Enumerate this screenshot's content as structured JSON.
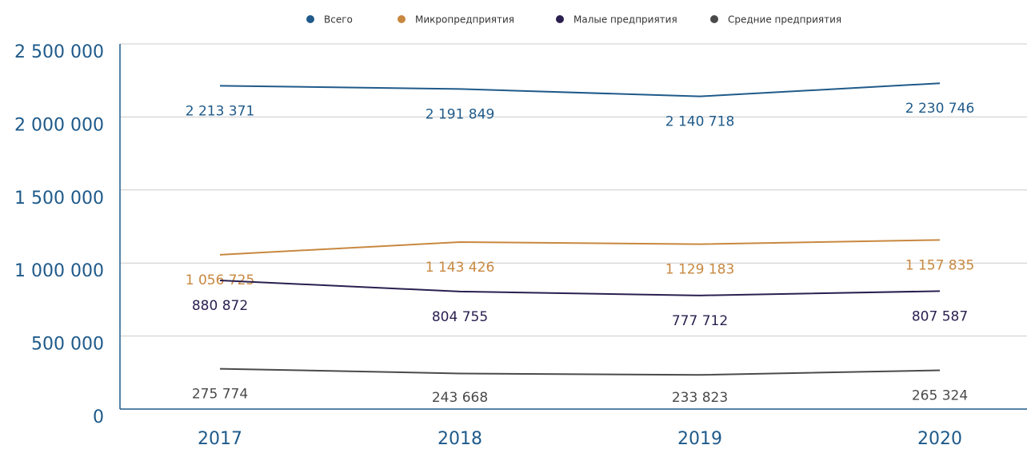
{
  "chart_data": {
    "type": "line",
    "categories": [
      "2017",
      "2018",
      "2019",
      "2020"
    ],
    "series": [
      {
        "name": "Всего",
        "color": "#1f5a8a",
        "values": [
          2213371,
          2191849,
          2140718,
          2230746
        ],
        "value_labels": [
          "2 213 371",
          "2 191 849",
          "2 140 718",
          "2 230 746"
        ]
      },
      {
        "name": "Микропредприятия",
        "color": "#c8883f",
        "values": [
          1056725,
          1143426,
          1129183,
          1157835
        ],
        "value_labels": [
          "1 056 725",
          "1 143 426",
          "1 129 183",
          "1 157 835"
        ]
      },
      {
        "name": "Малые предприятия",
        "color": "#2a1f4f",
        "values": [
          880872,
          804755,
          777712,
          807587
        ],
        "value_labels": [
          "880 872",
          "804 755",
          "777 712",
          "807 587"
        ]
      },
      {
        "name": "Средние предприятия",
        "color": "#4a4a4a",
        "values": [
          275774,
          243668,
          233823,
          265324
        ],
        "value_labels": [
          "275 774",
          "243 668",
          "233 823",
          "265 324"
        ]
      }
    ],
    "ylim": [
      0,
      2500000
    ],
    "yticks": [
      0,
      {
        "value": 500000,
        "label": "500 000"
      },
      {
        "value": 1000000,
        "label": "1 000 000"
      },
      {
        "value": 1500000,
        "label": "1 500 000"
      },
      {
        "value": 2000000,
        "label": "2 000 000"
      },
      {
        "value": 2500000,
        "label": "2 500 000"
      }
    ],
    "grid": true
  }
}
